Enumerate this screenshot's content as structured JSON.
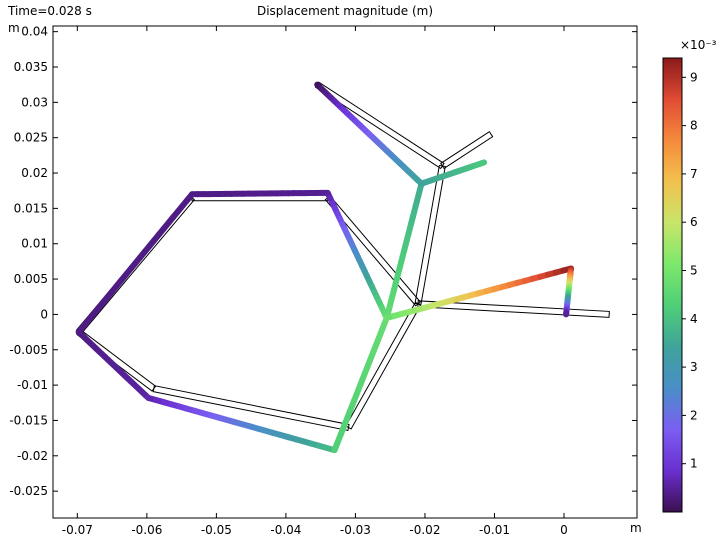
{
  "header": {
    "time_label": "Time=0.028 s",
    "plot_title": "Displacement magnitude (m)"
  },
  "chart_data": {
    "type": "line",
    "title": "Displacement magnitude (m)",
    "time": "Time=0.028 s",
    "xlabel": "m",
    "ylabel": "m",
    "xlim": [
      -0.0735,
      0.0105
    ],
    "ylim": [
      -0.0288,
      0.0408
    ],
    "x_ticks": [
      -0.07,
      -0.06,
      -0.05,
      -0.04,
      -0.03,
      -0.02,
      -0.01,
      0
    ],
    "x_tick_labels": [
      "-0.07",
      "-0.06",
      "-0.05",
      "-0.04",
      "-0.03",
      "-0.02",
      "-0.01",
      "0"
    ],
    "y_ticks": [
      0.04,
      0.035,
      0.03,
      0.025,
      0.02,
      0.015,
      0.01,
      0.005,
      0,
      -0.005,
      -0.01,
      -0.015,
      -0.02,
      -0.025
    ],
    "y_tick_labels": [
      "0.04",
      "0.035",
      "0.03",
      "0.025",
      "0.02",
      "0.015",
      "0.01",
      "0.005",
      "0",
      "-0.005",
      "-0.01",
      "-0.015",
      "-0.02",
      "-0.025"
    ],
    "undeformed_segments": [
      [
        [
          -0.0698,
          -0.0025
        ],
        [
          -0.0535,
          0.0165
        ]
      ],
      [
        [
          -0.0535,
          0.0165
        ],
        [
          -0.034,
          0.0165
        ]
      ],
      [
        [
          -0.0698,
          -0.0025
        ],
        [
          -0.059,
          -0.0105
        ]
      ],
      [
        [
          -0.059,
          -0.0105
        ],
        [
          -0.031,
          -0.016
        ]
      ],
      [
        [
          -0.034,
          0.0165
        ],
        [
          -0.021,
          0.0015
        ]
      ],
      [
        [
          -0.021,
          0.0015
        ],
        [
          -0.031,
          -0.016
        ]
      ],
      [
        [
          -0.021,
          0.0015
        ],
        [
          -0.0175,
          0.021
        ]
      ],
      [
        [
          -0.0355,
          0.0325
        ],
        [
          -0.0175,
          0.021
        ]
      ],
      [
        [
          -0.0175,
          0.021
        ],
        [
          -0.0105,
          0.0255
        ]
      ],
      [
        [
          -0.021,
          0.0015
        ],
        [
          0.0065,
          0.0
        ]
      ]
    ],
    "deformed_segments": [
      {
        "from": [
          -0.0698,
          -0.0025
        ],
        "to": [
          -0.0535,
          0.017
        ],
        "d0": 0.35,
        "d1": 0.35
      },
      {
        "from": [
          -0.0535,
          0.017
        ],
        "to": [
          -0.034,
          0.0172
        ],
        "d0": 0.35,
        "d1": 0.45
      },
      {
        "from": [
          -0.0698,
          -0.0025
        ],
        "to": [
          -0.0598,
          -0.0118
        ],
        "d0": 0.35,
        "d1": 0.55
      },
      {
        "from": [
          -0.0598,
          -0.0118
        ],
        "to": [
          -0.033,
          -0.0192
        ],
        "d0": 0.55,
        "d1": 3.9
      },
      {
        "from": [
          -0.034,
          0.0172
        ],
        "to": [
          -0.0255,
          -0.0005
        ],
        "d0": 0.45,
        "d1": 4.7
      },
      {
        "from": [
          -0.0255,
          -0.0005
        ],
        "to": [
          -0.033,
          -0.0192
        ],
        "d0": 4.7,
        "d1": 4.3
      },
      {
        "from": [
          -0.0255,
          -0.0005
        ],
        "to": [
          -0.0205,
          0.0185
        ],
        "d0": 4.7,
        "d1": 3.6
      },
      {
        "from": [
          -0.0355,
          0.0325
        ],
        "to": [
          -0.0205,
          0.0185
        ],
        "d0": 0.05,
        "d1": 3.4
      },
      {
        "from": [
          -0.0205,
          0.0185
        ],
        "to": [
          -0.0115,
          0.0215
        ],
        "d0": 3.4,
        "d1": 4.1
      },
      {
        "from": [
          -0.0255,
          -0.0005
        ],
        "to": [
          0.001,
          0.0065
        ],
        "d0": 4.7,
        "d1": 9.3
      },
      {
        "from": [
          0.001,
          0.0065
        ],
        "to": [
          0.0003,
          0.0
        ],
        "d0": 9.3,
        "d1": 0.3
      }
    ],
    "colorbar": {
      "min": 0,
      "max": 9.4,
      "ticks": [
        1,
        2,
        3,
        4,
        5,
        6,
        7,
        8,
        9
      ],
      "tick_labels": [
        "1",
        "2",
        "3",
        "4",
        "5",
        "6",
        "7",
        "8",
        "9"
      ],
      "exponent_label": "×10⁻³",
      "colors": [
        "#3b0f4f",
        "#6a2fd0",
        "#7b5ef2",
        "#4a8ec8",
        "#3fa39a",
        "#4fcf78",
        "#7de86b",
        "#c7e56a",
        "#f2c24e",
        "#f58a3c",
        "#e04b34",
        "#8a1a1a"
      ]
    }
  }
}
